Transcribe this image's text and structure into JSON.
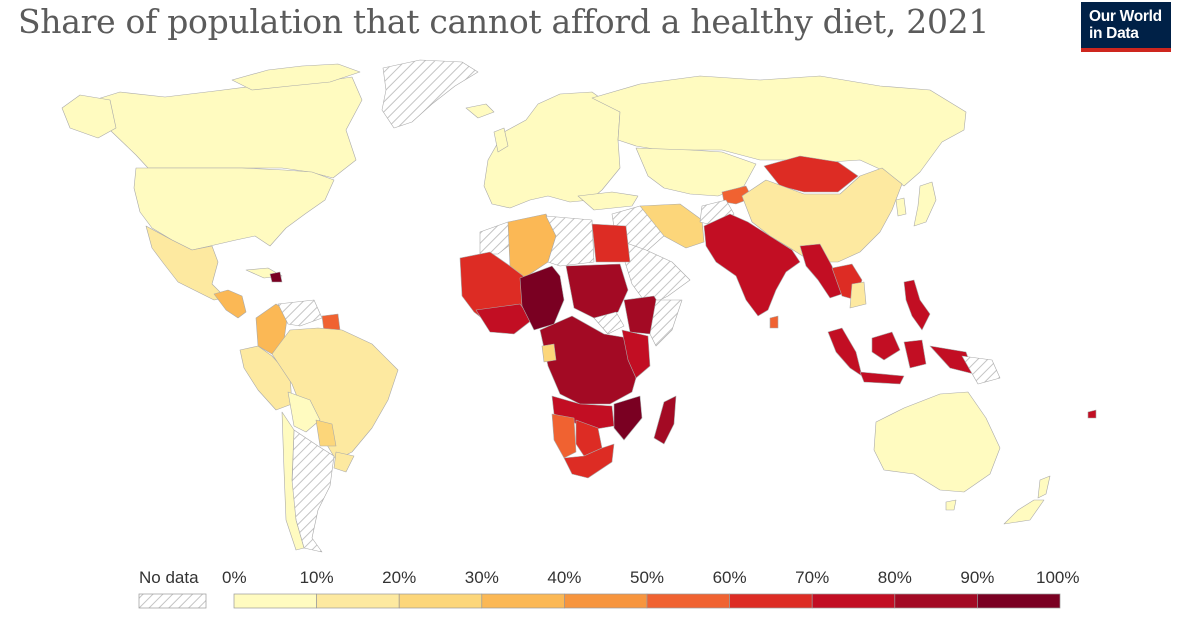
{
  "title": "Share of population that cannot afford a healthy diet, 2021",
  "logo": {
    "line1": "Our World",
    "line2": "in Data",
    "bg": "#002147",
    "accent": "#ce261e"
  },
  "legend": {
    "no_data_label": "No data",
    "no_data_pattern": "diagonal-hatch-gray",
    "ticks": [
      "0%",
      "10%",
      "20%",
      "30%",
      "40%",
      "50%",
      "60%",
      "70%",
      "80%",
      "90%",
      "100%"
    ],
    "bins": [
      {
        "range": "0-10%",
        "color": "#fffbc0"
      },
      {
        "range": "10-20%",
        "color": "#fde9a0"
      },
      {
        "range": "20-30%",
        "color": "#fcd67a"
      },
      {
        "range": "30-40%",
        "color": "#fbb855"
      },
      {
        "range": "40-50%",
        "color": "#f7953e"
      },
      {
        "range": "50-60%",
        "color": "#f06231"
      },
      {
        "range": "60-70%",
        "color": "#dd2c24"
      },
      {
        "range": "70-80%",
        "color": "#c20e23"
      },
      {
        "range": "80-90%",
        "color": "#a30a24"
      },
      {
        "range": "90-100%",
        "color": "#7a0022"
      }
    ]
  }
}
